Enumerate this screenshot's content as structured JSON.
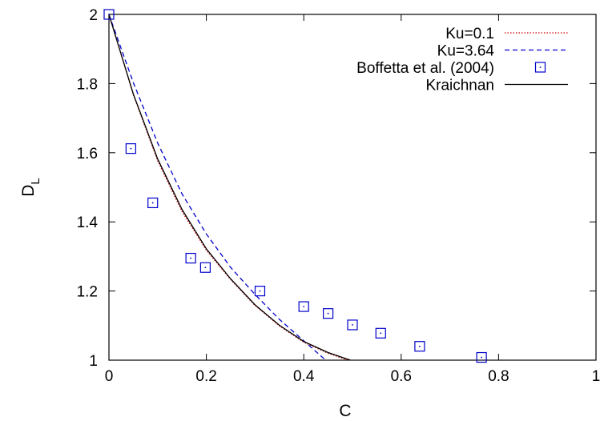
{
  "chart_data": {
    "type": "line",
    "xlabel": "C",
    "ylabel": "D",
    "ylabel_subscript": "L",
    "xlim": [
      0,
      1
    ],
    "ylim": [
      1,
      2
    ],
    "x_ticks": [
      0,
      0.2,
      0.4,
      0.6,
      0.8,
      1
    ],
    "x_tick_labels": [
      "0",
      "0.2",
      "0.4",
      "0.6",
      "0.8",
      "1"
    ],
    "y_ticks": [
      1,
      1.2,
      1.4,
      1.6,
      1.8,
      2
    ],
    "y_tick_labels": [
      "1",
      "1.2",
      "1.4",
      "1.6",
      "1.8",
      "2"
    ],
    "grid": false,
    "legend_position": "top-right",
    "series": [
      {
        "name": "Ku=0.1",
        "kind": "line",
        "style": "dotted",
        "color": "#cc0000",
        "x": [
          0,
          0.05,
          0.1,
          0.15,
          0.2,
          0.25,
          0.3,
          0.35,
          0.4,
          0.45,
          0.5
        ],
        "y": [
          2,
          1.768,
          1.577,
          1.43,
          1.318,
          1.233,
          1.158,
          1.099,
          1.052,
          1.02,
          0.995
        ]
      },
      {
        "name": "Ku=3.64",
        "kind": "line",
        "style": "dashed",
        "color": "#0000cc",
        "x": [
          0,
          0.05,
          0.1,
          0.15,
          0.2,
          0.25,
          0.3,
          0.35,
          0.4,
          0.445
        ],
        "y": [
          2,
          1.803,
          1.628,
          1.481,
          1.365,
          1.268,
          1.19,
          1.118,
          1.056,
          1.0
        ]
      },
      {
        "name": "Boffetta et al. (2004)",
        "kind": "marker",
        "marker": "square-dot",
        "color": "#0000cc",
        "x": [
          0,
          0.045,
          0.09,
          0.168,
          0.198,
          0.31,
          0.4,
          0.45,
          0.5,
          0.558,
          0.638,
          0.765
        ],
        "y": [
          2,
          1.612,
          1.455,
          1.295,
          1.268,
          1.2,
          1.155,
          1.135,
          1.102,
          1.078,
          1.04,
          1.008
        ]
      },
      {
        "name": "Kraichnan",
        "kind": "line",
        "style": "solid",
        "color": "#000000",
        "x": [
          0,
          0.05,
          0.1,
          0.15,
          0.2,
          0.25,
          0.3,
          0.35,
          0.4,
          0.45,
          0.5
        ],
        "y": [
          2,
          1.77,
          1.582,
          1.436,
          1.322,
          1.235,
          1.16,
          1.101,
          1.054,
          1.022,
          0.998
        ]
      }
    ]
  }
}
